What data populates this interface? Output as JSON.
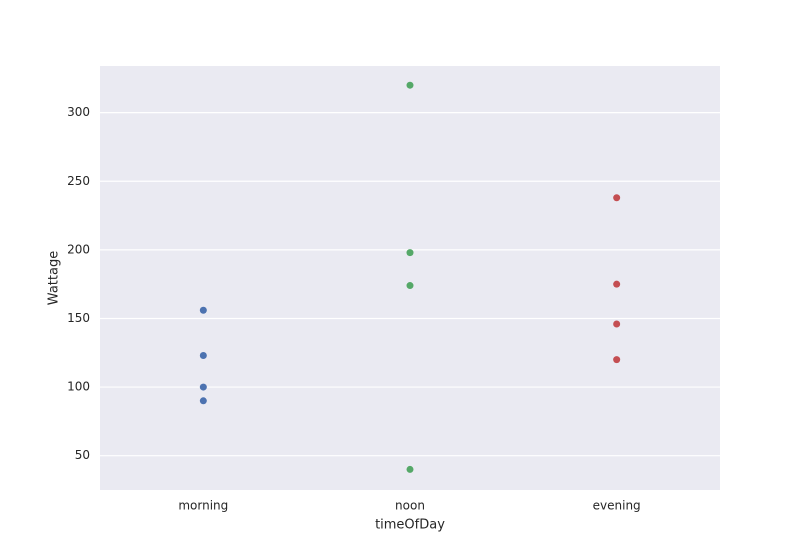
{
  "chart_data": {
    "type": "strip",
    "x_label": "timeOfDay",
    "y_label": "Wattage",
    "categories": [
      "morning",
      "noon",
      "evening"
    ],
    "values": [
      [
        156,
        123,
        100,
        90
      ],
      [
        320,
        198,
        174,
        40
      ],
      [
        238,
        175,
        146,
        120
      ]
    ],
    "colors": [
      "#4c72b0",
      "#55a868",
      "#c44e52"
    ],
    "ylim": [
      25,
      334
    ],
    "yticks": [
      50,
      100,
      150,
      200,
      250,
      300
    ],
    "grid": true
  }
}
